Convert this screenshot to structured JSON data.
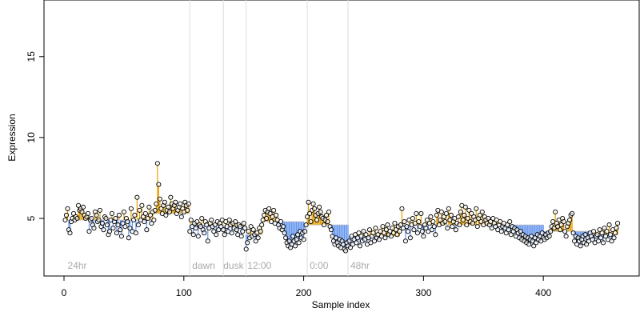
{
  "chart_data": {
    "type": "lollipop",
    "xlabel": "Sample index",
    "ylabel": "Expression",
    "xlim": [
      -16.7,
      480
    ],
    "ylim": [
      1.44,
      18.5
    ],
    "xticks": [
      0,
      100,
      200,
      300,
      400
    ],
    "yticks": [
      5,
      10,
      15
    ],
    "above_color": "#E69F00",
    "below_color": "#6495ED",
    "point_color": "#000000",
    "vlines": [
      105,
      133,
      152,
      203,
      237
    ],
    "annotations": [
      {
        "label": "24hr",
        "x": 3
      },
      {
        "label": "dawn",
        "x": 107
      },
      {
        "label": "dusk",
        "x": 133
      },
      {
        "label": "12:00",
        "x": 153
      },
      {
        "label": "0:00",
        "x": 205
      },
      {
        "label": "48hr",
        "x": 239
      }
    ],
    "segments": [
      {
        "start": 1,
        "end": 75,
        "level": 4.9
      },
      {
        "start": 76,
        "end": 104,
        "level": 5.3
      },
      {
        "start": 105,
        "end": 132,
        "level": 4.6
      },
      {
        "start": 133,
        "end": 151,
        "level": 4.5
      },
      {
        "start": 152,
        "end": 165,
        "level": 4.0
      },
      {
        "start": 166,
        "end": 200,
        "level": 4.8
      },
      {
        "start": 201,
        "end": 237,
        "level": 4.6
      },
      {
        "start": 238,
        "end": 280,
        "level": 3.9
      },
      {
        "start": 281,
        "end": 330,
        "level": 4.6
      },
      {
        "start": 331,
        "end": 400,
        "level": 4.6
      },
      {
        "start": 401,
        "end": 440,
        "level": 4.2
      },
      {
        "start": 441,
        "end": 462,
        "level": 4.0
      }
    ],
    "x": [
      1,
      2,
      3,
      4,
      5,
      6,
      7,
      8,
      9,
      10,
      11,
      12,
      13,
      14,
      15,
      16,
      17,
      18,
      19,
      20,
      21,
      22,
      23,
      24,
      25,
      26,
      27,
      28,
      29,
      30,
      31,
      32,
      33,
      34,
      35,
      36,
      37,
      38,
      39,
      40,
      41,
      42,
      43,
      44,
      45,
      46,
      47,
      48,
      49,
      50,
      51,
      52,
      53,
      54,
      55,
      56,
      57,
      58,
      59,
      60,
      61,
      62,
      63,
      64,
      65,
      66,
      67,
      68,
      69,
      70,
      71,
      72,
      73,
      74,
      75,
      76,
      77,
      78,
      79,
      80,
      81,
      82,
      83,
      84,
      85,
      86,
      87,
      88,
      89,
      90,
      91,
      92,
      93,
      94,
      95,
      96,
      97,
      98,
      99,
      100,
      101,
      102,
      103,
      104,
      105,
      106,
      107,
      108,
      109,
      110,
      111,
      112,
      113,
      114,
      115,
      116,
      117,
      118,
      119,
      120,
      121,
      122,
      123,
      124,
      125,
      126,
      127,
      128,
      129,
      130,
      131,
      132,
      133,
      134,
      135,
      136,
      137,
      138,
      139,
      140,
      141,
      142,
      143,
      144,
      145,
      146,
      147,
      148,
      149,
      150,
      151,
      152,
      153,
      154,
      155,
      156,
      157,
      158,
      159,
      160,
      161,
      162,
      163,
      164,
      165,
      166,
      167,
      168,
      169,
      170,
      171,
      172,
      173,
      174,
      175,
      176,
      177,
      178,
      179,
      180,
      181,
      182,
      183,
      184,
      185,
      186,
      187,
      188,
      189,
      190,
      191,
      192,
      193,
      194,
      195,
      196,
      197,
      198,
      199,
      200,
      201,
      202,
      203,
      204,
      205,
      206,
      207,
      208,
      209,
      210,
      211,
      212,
      213,
      214,
      215,
      216,
      217,
      218,
      219,
      220,
      221,
      222,
      223,
      224,
      225,
      226,
      227,
      228,
      229,
      230,
      231,
      232,
      233,
      234,
      235,
      236,
      237,
      238,
      239,
      240,
      241,
      242,
      243,
      244,
      245,
      246,
      247,
      248,
      249,
      250,
      251,
      252,
      253,
      254,
      255,
      256,
      257,
      258,
      259,
      260,
      261,
      262,
      263,
      264,
      265,
      266,
      267,
      268,
      269,
      270,
      271,
      272,
      273,
      274,
      275,
      276,
      277,
      278,
      279,
      280,
      281,
      282,
      283,
      284,
      285,
      286,
      287,
      288,
      289,
      290,
      291,
      292,
      293,
      294,
      295,
      296,
      297,
      298,
      299,
      300,
      301,
      302,
      303,
      304,
      305,
      306,
      307,
      308,
      309,
      310,
      311,
      312,
      313,
      314,
      315,
      316,
      317,
      318,
      319,
      320,
      321,
      322,
      323,
      324,
      325,
      326,
      327,
      328,
      329,
      330,
      331,
      332,
      333,
      334,
      335,
      336,
      337,
      338,
      339,
      340,
      341,
      342,
      343,
      344,
      345,
      346,
      347,
      348,
      349,
      350,
      351,
      352,
      353,
      354,
      355,
      356,
      357,
      358,
      359,
      360,
      361,
      362,
      363,
      364,
      365,
      366,
      367,
      368,
      369,
      370,
      371,
      372,
      373,
      374,
      375,
      376,
      377,
      378,
      379,
      380,
      381,
      382,
      383,
      384,
      385,
      386,
      387,
      388,
      389,
      390,
      391,
      392,
      393,
      394,
      395,
      396,
      397,
      398,
      399,
      400,
      401,
      402,
      403,
      404,
      405,
      406,
      407,
      408,
      409,
      410,
      411,
      412,
      413,
      414,
      415,
      416,
      417,
      418,
      419,
      420,
      421,
      422,
      423,
      424,
      425,
      426,
      427,
      428,
      429,
      430,
      431,
      432,
      433,
      434,
      435,
      436,
      437,
      438,
      439,
      440,
      441,
      442,
      443,
      444,
      445,
      446,
      447,
      448,
      449,
      450,
      451,
      452,
      453,
      454,
      455,
      456,
      457,
      458,
      459,
      460,
      461,
      462
    ],
    "values": [
      4.9,
      5.2,
      5.6,
      4.3,
      4.1,
      4.8,
      5.0,
      5.3,
      4.9,
      5.1,
      5.0,
      5.8,
      5.5,
      5.6,
      5.4,
      5.7,
      5.2,
      5.0,
      5.1,
      5.3,
      4.2,
      4.9,
      5.0,
      4.6,
      4.4,
      5.4,
      5.2,
      4.8,
      4.9,
      5.5,
      4.5,
      4.7,
      4.3,
      5.1,
      5.0,
      4.6,
      4.0,
      4.2,
      4.9,
      5.3,
      4.4,
      4.8,
      5.0,
      4.1,
      4.6,
      5.2,
      4.3,
      3.9,
      4.7,
      5.4,
      4.5,
      5.0,
      4.8,
      3.8,
      4.4,
      5.6,
      4.2,
      4.9,
      5.2,
      4.1,
      6.3,
      4.6,
      5.5,
      4.9,
      5.8,
      5.1,
      4.8,
      5.3,
      4.3,
      5.0,
      5.7,
      5.2,
      4.7,
      5.4,
      4.9,
      5.5,
      5.9,
      8.4,
      7.1,
      6.2,
      5.6,
      5.3,
      5.8,
      6.0,
      5.2,
      5.5,
      5.7,
      5.4,
      6.3,
      5.9,
      5.6,
      5.8,
      6.0,
      5.3,
      5.5,
      5.7,
      5.9,
      5.1,
      5.6,
      5.4,
      6.0,
      5.8,
      5.5,
      5.9,
      4.2,
      4.9,
      4.5,
      4.0,
      4.7,
      4.4,
      4.8,
      3.9,
      4.6,
      4.5,
      5.0,
      4.3,
      4.1,
      4.8,
      4.6,
      3.6,
      4.4,
      4.7,
      4.9,
      4.5,
      4.2,
      4.6,
      4.0,
      4.8,
      4.3,
      4.7,
      4.5,
      4.9,
      4.3,
      4.0,
      4.8,
      4.5,
      4.2,
      4.9,
      4.6,
      4.1,
      4.7,
      4.4,
      4.8,
      4.3,
      4.0,
      4.6,
      4.5,
      3.9,
      4.2,
      4.7,
      4.4,
      3.1,
      3.5,
      4.2,
      3.8,
      4.5,
      3.9,
      4.3,
      4.0,
      3.6,
      4.1,
      3.8,
      4.4,
      4.2,
      4.6,
      4.9,
      5.2,
      5.5,
      5.0,
      5.4,
      5.6,
      5.3,
      4.8,
      5.1,
      5.5,
      4.7,
      5.2,
      4.9,
      4.6,
      4.4,
      4.8,
      4.3,
      4.5,
      4.1,
      3.8,
      3.5,
      3.3,
      3.6,
      3.2,
      3.4,
      3.9,
      3.6,
      3.3,
      3.7,
      4.0,
      3.5,
      4.2,
      3.8,
      4.1,
      3.7,
      4.2,
      4.6,
      5.1,
      6.0,
      5.3,
      4.8,
      5.5,
      5.9,
      5.6,
      5.2,
      4.9,
      5.3,
      5.7,
      5.4,
      5.1,
      5.0,
      4.6,
      4.9,
      5.2,
      4.8,
      5.4,
      4.5,
      4.3,
      3.9,
      3.6,
      3.4,
      3.8,
      3.5,
      3.3,
      3.7,
      3.2,
      3.6,
      3.4,
      3.1,
      3.0,
      3.5,
      3.3,
      3.6,
      3.2,
      3.9,
      3.4,
      3.7,
      4.0,
      3.5,
      3.8,
      4.1,
      3.3,
      3.9,
      3.6,
      4.2,
      3.7,
      4.0,
      3.4,
      3.8,
      4.3,
      3.5,
      3.9,
      4.1,
      3.6,
      4.4,
      3.8,
      4.0,
      3.7,
      4.2,
      3.9,
      4.5,
      4.1,
      3.8,
      4.3,
      4.6,
      4.0,
      4.2,
      3.9,
      4.4,
      4.1,
      4.7,
      4.3,
      4.0,
      4.5,
      4.2,
      4.6,
      5.6,
      4.4,
      4.8,
      3.6,
      4.5,
      4.2,
      4.9,
      3.8,
      4.6,
      5.0,
      4.3,
      4.7,
      5.3,
      4.1,
      4.8,
      4.5,
      5.3,
      4.2,
      3.9,
      4.6,
      4.4,
      4.9,
      4.2,
      4.7,
      5.1,
      4.3,
      4.8,
      4.5,
      4.0,
      5.2,
      5.5,
      4.6,
      4.9,
      5.4,
      4.7,
      5.1,
      4.8,
      5.3,
      4.4,
      5.6,
      4.9,
      5.2,
      4.5,
      4.8,
      5.0,
      4.3,
      4.7,
      5.1,
      4.6,
      5.4,
      5.8,
      4.9,
      5.2,
      5.7,
      4.6,
      5.0,
      5.5,
      4.8,
      5.3,
      4.7,
      5.1,
      4.9,
      5.6,
      4.5,
      5.0,
      5.2,
      4.8,
      5.4,
      4.6,
      5.1,
      4.9,
      4.7,
      5.0,
      4.6,
      4.8,
      4.4,
      5.0,
      4.7,
      4.5,
      4.9,
      4.3,
      4.6,
      4.8,
      4.2,
      4.5,
      4.7,
      4.4,
      4.1,
      4.6,
      4.3,
      4.8,
      4.0,
      4.5,
      4.2,
      4.4,
      3.9,
      4.3,
      4.1,
      3.8,
      4.2,
      3.7,
      4.0,
      3.6,
      3.9,
      3.5,
      3.8,
      3.4,
      3.7,
      3.9,
      3.6,
      3.3,
      3.8,
      3.5,
      4.0,
      3.7,
      3.9,
      3.6,
      4.1,
      3.8,
      3.7,
      4.0,
      3.8,
      4.1,
      3.9,
      4.2,
      4.5,
      4.8,
      4.4,
      5.4,
      4.7,
      4.5,
      4.9,
      4.3,
      4.6,
      5.0,
      4.8,
      4.2,
      3.9,
      4.5,
      4.7,
      4.9,
      5.2,
      5.3,
      4.1,
      3.6,
      3.9,
      3.4,
      3.8,
      3.6,
      3.3,
      3.7,
      3.9,
      3.5,
      4.0,
      3.4,
      3.8,
      3.6,
      4.1,
      3.9,
      3.7,
      4.2,
      3.5,
      3.9,
      4.0,
      3.6,
      4.3,
      3.8,
      4.1,
      3.5,
      4.4,
      3.9,
      4.2,
      3.7,
      4.6,
      4.0,
      3.6,
      4.3,
      3.8,
      4.1,
      4.4,
      4.7
    ]
  }
}
